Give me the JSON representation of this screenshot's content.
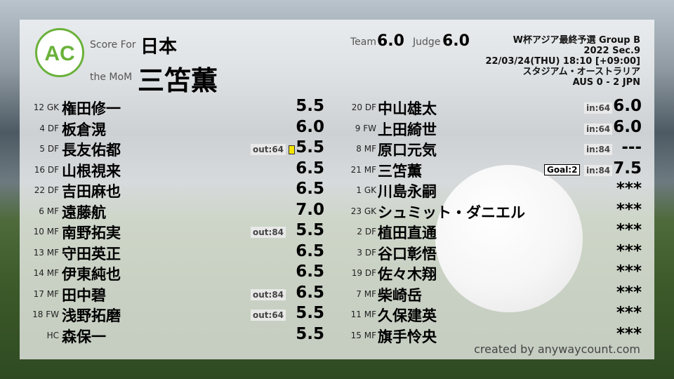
{
  "header": {
    "logo_text": "AC",
    "logo_ring": "ANYWAY COUNT",
    "score_for_label": "Score For",
    "team": "日本",
    "mom_label": "the MoM",
    "mom": "三笘薫",
    "team_label": "Team",
    "team_score": "6.0",
    "judge_label": "Judge",
    "judge_score": "6.0",
    "match": [
      "W杯アジア最終予選 Group B",
      "2022 Sec.9",
      "22/03/24(THU) 18:10 [+09:00]",
      "スタジアム・オーストラリア",
      "AUS 0 - 2 JPN"
    ]
  },
  "left": [
    {
      "num": "12 GK",
      "name": "権田修一",
      "score": "5.5"
    },
    {
      "num": "4 DF",
      "name": "板倉滉",
      "score": "6.0"
    },
    {
      "num": "5 DF",
      "name": "長友佑都",
      "score": "5.5",
      "sub": "out:64",
      "yellow": true
    },
    {
      "num": "16 DF",
      "name": "山根視来",
      "score": "6.5"
    },
    {
      "num": "22 DF",
      "name": "吉田麻也",
      "score": "6.5"
    },
    {
      "num": "6 MF",
      "name": "遠藤航",
      "score": "7.0"
    },
    {
      "num": "10 MF",
      "name": "南野拓実",
      "score": "5.5",
      "sub": "out:84"
    },
    {
      "num": "13 MF",
      "name": "守田英正",
      "score": "6.5"
    },
    {
      "num": "14 MF",
      "name": "伊東純也",
      "score": "6.5"
    },
    {
      "num": "17 MF",
      "name": "田中碧",
      "score": "6.5",
      "sub": "out:84"
    },
    {
      "num": "18 FW",
      "name": "浅野拓磨",
      "score": "5.5",
      "sub": "out:64"
    },
    {
      "num": "HC",
      "name": "森保一",
      "score": "5.5"
    }
  ],
  "right": [
    {
      "num": "20 DF",
      "name": "中山雄太",
      "score": "6.0",
      "sub": "in:64"
    },
    {
      "num": "9 FW",
      "name": "上田綺世",
      "score": "6.0",
      "sub": "in:64"
    },
    {
      "num": "8 MF",
      "name": "原口元気",
      "score": "---",
      "sub": "in:84"
    },
    {
      "num": "21 MF",
      "name": "三笘薫",
      "score": "7.5",
      "sub": "in:84",
      "goal": "Goal:2"
    },
    {
      "num": "1 GK",
      "name": "川島永嗣",
      "score": "***"
    },
    {
      "num": "23 GK",
      "name": "シュミット・ダニエル",
      "score": "***"
    },
    {
      "num": "2 DF",
      "name": "植田直通",
      "score": "***"
    },
    {
      "num": "3 DF",
      "name": "谷口彰悟",
      "score": "***"
    },
    {
      "num": "19 DF",
      "name": "佐々木翔",
      "score": "***"
    },
    {
      "num": "7 MF",
      "name": "柴崎岳",
      "score": "***"
    },
    {
      "num": "11 MF",
      "name": "久保建英",
      "score": "***"
    },
    {
      "num": "15 MF",
      "name": "旗手怜央",
      "score": "***"
    }
  ],
  "credit": "created by anywaycount.com",
  "colors": {
    "logo": "#6ab23a",
    "yellow_card": "#f5e400"
  }
}
